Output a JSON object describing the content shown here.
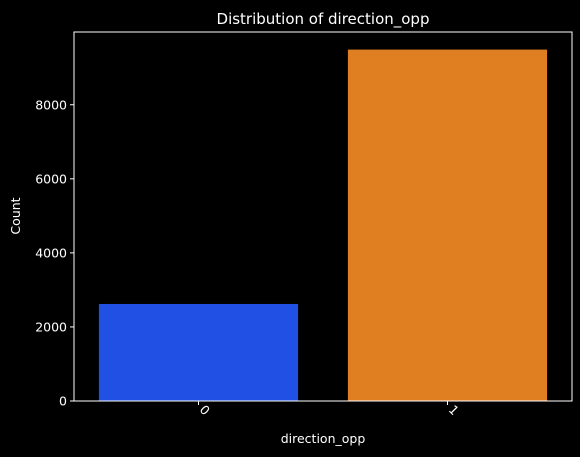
{
  "chart_data": {
    "type": "bar",
    "title": "Distribution of direction_opp",
    "xlabel": "direction_opp",
    "ylabel": "Count",
    "categories": [
      "0",
      "1"
    ],
    "values": [
      2620,
      9490
    ],
    "ylim": [
      0,
      9965
    ],
    "yticks": [
      0,
      2000,
      4000,
      6000,
      8000
    ],
    "ytick_labels": [
      "0",
      "2000",
      "4000",
      "6000",
      "8000"
    ],
    "xtick_rotation": 45,
    "colors": [
      "#2150e4",
      "#e07e22"
    ],
    "background": "#000000",
    "axis_color": "#ffffff",
    "text_color": "#ffffff",
    "grid": false,
    "legend": "none"
  }
}
